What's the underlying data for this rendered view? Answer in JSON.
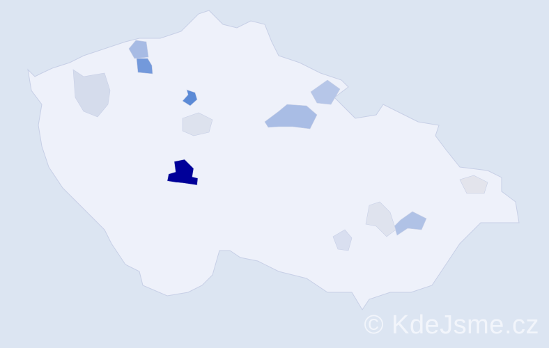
{
  "map": {
    "base_fill": "#eef1fa",
    "border_color": "#c7cfe6",
    "background": "#dce5f2",
    "highlighted_districts": [
      {
        "level": "highest",
        "color": "#000099"
      },
      {
        "level": "high",
        "color": "#5b8ad6"
      },
      {
        "level": "high",
        "color": "#7399db"
      },
      {
        "level": "medium",
        "color": "#a9bde5"
      },
      {
        "level": "medium",
        "color": "#b0c2e6"
      },
      {
        "level": "medium",
        "color": "#a7bbe4"
      },
      {
        "level": "medium",
        "color": "#b6c6e8"
      },
      {
        "level": "low",
        "color": "#d5dcec"
      },
      {
        "level": "low",
        "color": "#dde2ee"
      },
      {
        "level": "low",
        "color": "#dfe3ee"
      },
      {
        "level": "low",
        "color": "#e3e4ec"
      },
      {
        "level": "low",
        "color": "#d9dff0"
      }
    ]
  },
  "watermark": "© KdeJsme.cz"
}
